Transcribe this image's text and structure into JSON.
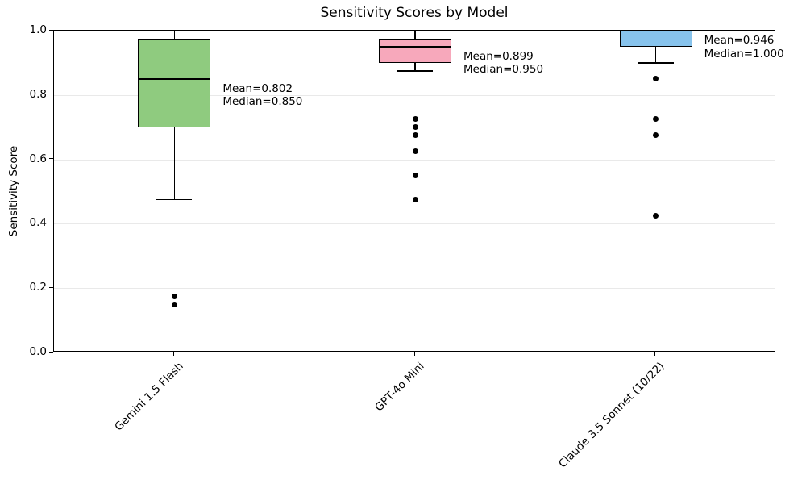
{
  "figure": {
    "background": "#ffffff",
    "text_color": "#000000",
    "grid_color": "#e9e9e9",
    "spine_color": "#000000"
  },
  "chart_data": {
    "type": "boxplot",
    "title": "Sensitivity Scores by Model",
    "xlabel": "",
    "ylabel": "Sensitivity Score",
    "ylim": [
      0.0,
      1.0
    ],
    "yticks": [
      0.0,
      0.2,
      0.4,
      0.6,
      0.8,
      1.0
    ],
    "ytick_labels": [
      "0.0",
      "0.2",
      "0.4",
      "0.6",
      "0.8",
      "1.0"
    ],
    "grid": {
      "axis": "y",
      "color": "#e9e9e9"
    },
    "legend": "none",
    "categories": [
      "Gemini 1.5 Flash",
      "GPT-4o Mini",
      "Claude 3.5 Sonnet (10/22)"
    ],
    "series": [
      {
        "label": "Gemini 1.5 Flash",
        "box_color": "#8fcb7f",
        "whisker_low": 0.475,
        "q1": 0.7,
        "median": 0.85,
        "q3": 0.975,
        "whisker_high": 1.0,
        "mean": 0.802,
        "outliers": [
          0.175,
          0.15
        ],
        "annotation_lines": [
          "Mean=0.802",
          "Median=0.850"
        ]
      },
      {
        "label": "GPT-4o Mini",
        "box_color": "#f7a8bb",
        "whisker_low": 0.875,
        "q1": 0.9,
        "median": 0.95,
        "q3": 0.975,
        "whisker_high": 1.0,
        "mean": 0.899,
        "outliers": [
          0.725,
          0.7,
          0.675,
          0.625,
          0.55,
          0.475
        ],
        "annotation_lines": [
          "Mean=0.899",
          "Median=0.950"
        ]
      },
      {
        "label": "Claude 3.5 Sonnet (10/22)",
        "box_color": "#87c3ec",
        "whisker_low": 0.9,
        "q1": 0.95,
        "median": 1.0,
        "q3": 1.0,
        "whisker_high": 1.0,
        "mean": 0.946,
        "outliers": [
          0.85,
          0.725,
          0.675,
          0.425
        ],
        "annotation_lines": [
          "Mean=0.946",
          "Median=1.000"
        ]
      }
    ]
  }
}
